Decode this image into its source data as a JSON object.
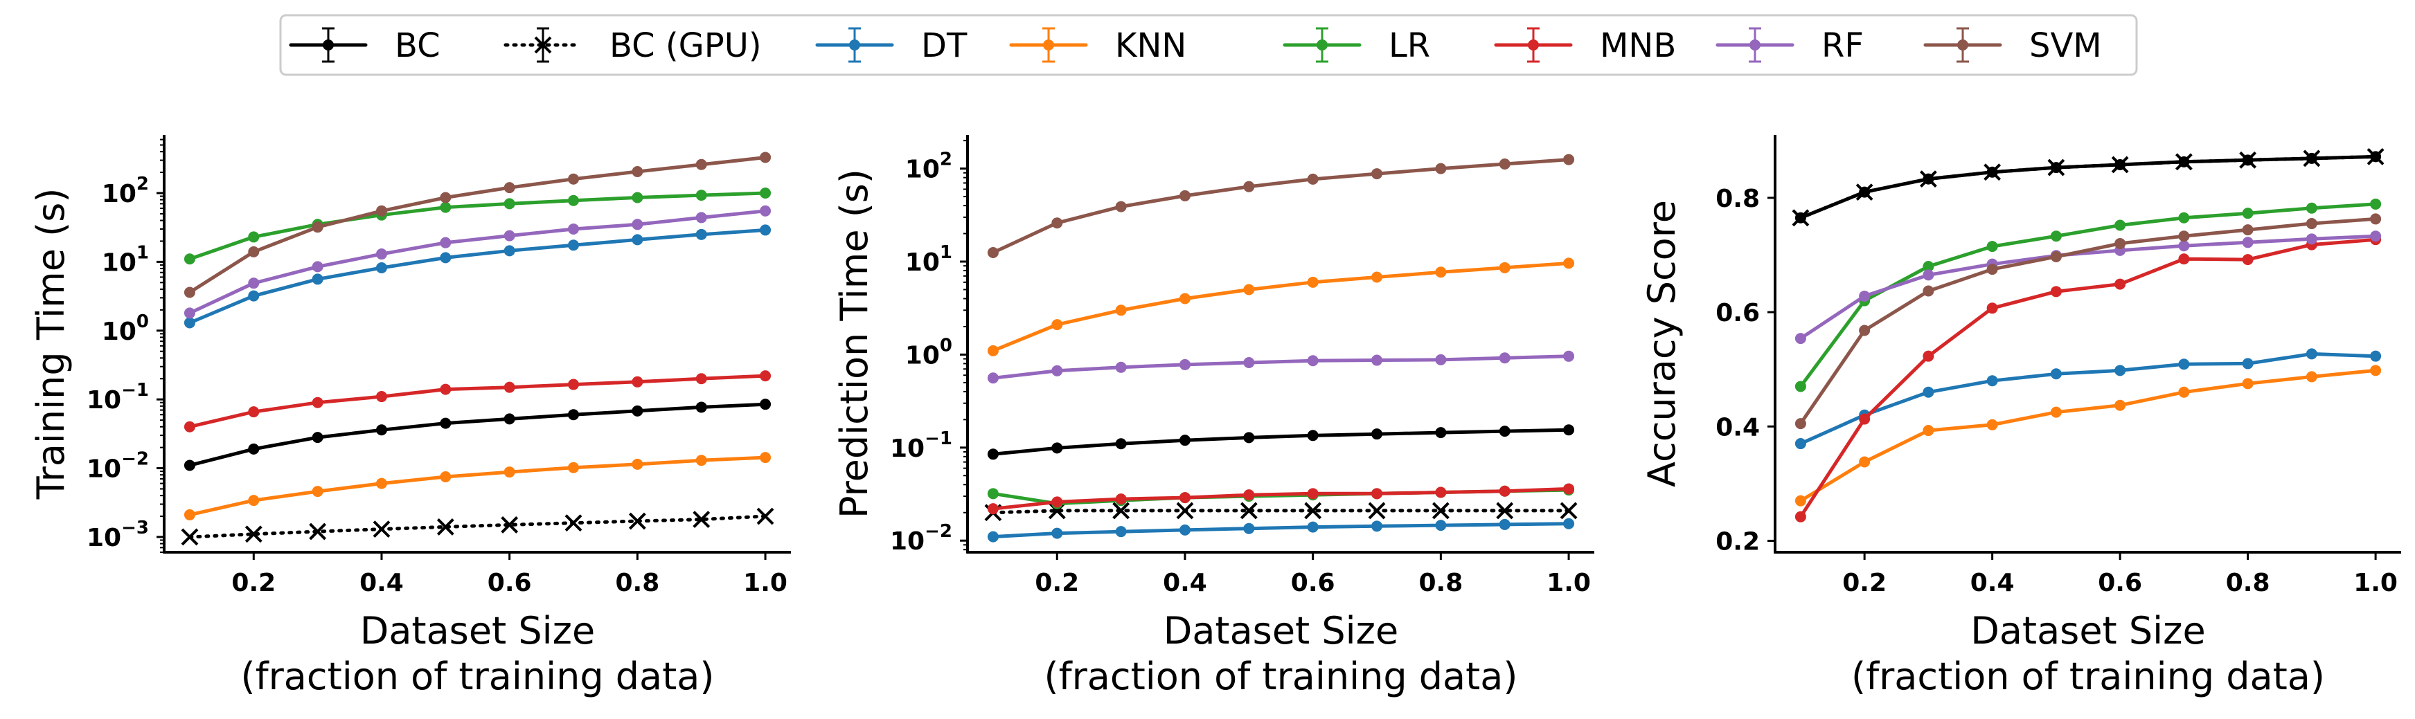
{
  "legend": {
    "placement": "top-center",
    "entries": [
      {
        "label": "BC",
        "color": "#000000",
        "style": "solid",
        "marker": "dot"
      },
      {
        "label": "BC (GPU)",
        "color": "#000000",
        "style": "dotted",
        "marker": "x"
      },
      {
        "label": "DT",
        "color": "#1f77b4",
        "style": "solid",
        "marker": "dot"
      },
      {
        "label": "KNN",
        "color": "#ff7f0e",
        "style": "solid",
        "marker": "dot"
      },
      {
        "label": "LR",
        "color": "#2ca02c",
        "style": "solid",
        "marker": "dot"
      },
      {
        "label": "MNB",
        "color": "#d62728",
        "style": "solid",
        "marker": "dot"
      },
      {
        "label": "RF",
        "color": "#9467bd",
        "style": "solid",
        "marker": "dot"
      },
      {
        "label": "SVM",
        "color": "#8c564b",
        "style": "solid",
        "marker": "dot"
      }
    ]
  },
  "chart_data": [
    {
      "type": "line",
      "ylabel": "Training Time (s)",
      "xlabel": "Dataset Size",
      "xlabel2": "(fraction of training data)",
      "yscale": "log",
      "xlim": [
        0.06,
        1.04
      ],
      "ylim": [
        0.0006,
        700
      ],
      "xticks": [
        0.2,
        0.4,
        0.6,
        0.8,
        1.0
      ],
      "xtick_labels": [
        "0.2",
        "0.4",
        "0.6",
        "0.8",
        "1.0"
      ],
      "yticks": [
        0.001,
        0.01,
        0.1,
        1,
        10,
        100
      ],
      "ytick_labels": [
        {
          "base": "10",
          "exp": "−3"
        },
        {
          "base": "10",
          "exp": "−2"
        },
        {
          "base": "10",
          "exp": "−1"
        },
        {
          "base": "10",
          "exp": "0"
        },
        {
          "base": "10",
          "exp": "1"
        },
        {
          "base": "10",
          "exp": "2"
        }
      ],
      "x": [
        0.1,
        0.2,
        0.3,
        0.4,
        0.5,
        0.6,
        0.7,
        0.8,
        0.9,
        1.0
      ],
      "series": [
        {
          "name": "BC",
          "color": "#000000",
          "style": "solid",
          "marker": "dot",
          "values": [
            0.011,
            0.019,
            0.028,
            0.036,
            0.045,
            0.052,
            0.06,
            0.068,
            0.077,
            0.085
          ]
        },
        {
          "name": "BC (GPU)",
          "color": "#000000",
          "style": "dotted",
          "marker": "x",
          "values": [
            0.001,
            0.0011,
            0.0012,
            0.0013,
            0.0014,
            0.0015,
            0.0016,
            0.0017,
            0.0018,
            0.002
          ]
        },
        {
          "name": "DT",
          "color": "#1f77b4",
          "style": "solid",
          "marker": "dot",
          "values": [
            1.3,
            3.2,
            5.6,
            8.2,
            11.5,
            14.5,
            17.5,
            21,
            25,
            29
          ]
        },
        {
          "name": "KNN",
          "color": "#ff7f0e",
          "style": "solid",
          "marker": "dot",
          "values": [
            0.0021,
            0.0034,
            0.0046,
            0.006,
            0.0075,
            0.0088,
            0.0102,
            0.0114,
            0.013,
            0.0143
          ]
        },
        {
          "name": "LR",
          "color": "#2ca02c",
          "style": "solid",
          "marker": "dot",
          "values": [
            11,
            23,
            35,
            48,
            62,
            70,
            78,
            86,
            93,
            100
          ]
        },
        {
          "name": "MNB",
          "color": "#d62728",
          "style": "solid",
          "marker": "dot",
          "values": [
            0.04,
            0.066,
            0.09,
            0.11,
            0.14,
            0.15,
            0.165,
            0.18,
            0.2,
            0.22
          ]
        },
        {
          "name": "RF",
          "color": "#9467bd",
          "style": "solid",
          "marker": "dot",
          "values": [
            1.8,
            4.9,
            8.5,
            13,
            19,
            24,
            30,
            35,
            44,
            55
          ]
        },
        {
          "name": "SVM",
          "color": "#8c564b",
          "style": "solid",
          "marker": "dot",
          "values": [
            3.6,
            14,
            32,
            55,
            86,
            120,
            160,
            205,
            260,
            330
          ]
        }
      ]
    },
    {
      "type": "line",
      "ylabel": "Prediction Time (s)",
      "xlabel": "Dataset Size",
      "xlabel2": "(fraction of training data)",
      "yscale": "log",
      "xlim": [
        0.06,
        1.04
      ],
      "ylim": [
        0.0075,
        230
      ],
      "xticks": [
        0.2,
        0.4,
        0.6,
        0.8,
        1.0
      ],
      "xtick_labels": [
        "0.2",
        "0.4",
        "0.6",
        "0.8",
        "1.0"
      ],
      "yticks": [
        0.01,
        0.1,
        1,
        10,
        100
      ],
      "ytick_labels": [
        {
          "base": "10",
          "exp": "−2"
        },
        {
          "base": "10",
          "exp": "−1"
        },
        {
          "base": "10",
          "exp": "0"
        },
        {
          "base": "10",
          "exp": "1"
        },
        {
          "base": "10",
          "exp": "2"
        }
      ],
      "x": [
        0.1,
        0.2,
        0.3,
        0.4,
        0.5,
        0.6,
        0.7,
        0.8,
        0.9,
        1.0
      ],
      "series": [
        {
          "name": "BC",
          "color": "#000000",
          "style": "solid",
          "marker": "dot",
          "values": [
            0.085,
            0.099,
            0.11,
            0.12,
            0.128,
            0.135,
            0.14,
            0.145,
            0.15,
            0.155
          ]
        },
        {
          "name": "BC (GPU)",
          "color": "#000000",
          "style": "dotted",
          "marker": "x",
          "values": [
            0.02,
            0.021,
            0.021,
            0.021,
            0.021,
            0.021,
            0.021,
            0.021,
            0.021,
            0.021
          ]
        },
        {
          "name": "DT",
          "color": "#1f77b4",
          "style": "solid",
          "marker": "dot",
          "values": [
            0.011,
            0.012,
            0.0125,
            0.013,
            0.0135,
            0.014,
            0.0143,
            0.0146,
            0.0149,
            0.0152
          ]
        },
        {
          "name": "KNN",
          "color": "#ff7f0e",
          "style": "solid",
          "marker": "dot",
          "values": [
            1.1,
            2.1,
            3.0,
            4.0,
            5.0,
            6.0,
            6.8,
            7.7,
            8.6,
            9.6
          ]
        },
        {
          "name": "LR",
          "color": "#2ca02c",
          "style": "solid",
          "marker": "dot",
          "values": [
            0.032,
            0.025,
            0.027,
            0.029,
            0.03,
            0.031,
            0.032,
            0.033,
            0.034,
            0.035
          ]
        },
        {
          "name": "MNB",
          "color": "#d62728",
          "style": "solid",
          "marker": "dot",
          "values": [
            0.022,
            0.026,
            0.028,
            0.029,
            0.031,
            0.032,
            0.032,
            0.033,
            0.034,
            0.036
          ]
        },
        {
          "name": "RF",
          "color": "#9467bd",
          "style": "solid",
          "marker": "dot",
          "values": [
            0.56,
            0.67,
            0.73,
            0.78,
            0.82,
            0.86,
            0.87,
            0.88,
            0.92,
            0.96
          ]
        },
        {
          "name": "SVM",
          "color": "#8c564b",
          "style": "solid",
          "marker": "dot",
          "values": [
            12.5,
            26,
            39,
            51,
            64,
            77,
            88,
            100,
            112,
            125
          ]
        }
      ]
    },
    {
      "type": "line",
      "ylabel": "Accuracy Score",
      "xlabel": "Dataset Size",
      "xlabel2": "(fraction of training data)",
      "yscale": "linear",
      "xlim": [
        0.06,
        1.04
      ],
      "ylim": [
        0.18,
        0.91
      ],
      "xticks": [
        0.2,
        0.4,
        0.6,
        0.8,
        1.0
      ],
      "xtick_labels": [
        "0.2",
        "0.4",
        "0.6",
        "0.8",
        "1.0"
      ],
      "yticks": [
        0.2,
        0.4,
        0.6,
        0.8
      ],
      "ytick_labels": [
        {
          "base": "0.2",
          "exp": ""
        },
        {
          "base": "0.4",
          "exp": ""
        },
        {
          "base": "0.6",
          "exp": ""
        },
        {
          "base": "0.8",
          "exp": ""
        }
      ],
      "x": [
        0.1,
        0.2,
        0.3,
        0.4,
        0.5,
        0.6,
        0.7,
        0.8,
        0.9,
        1.0
      ],
      "series": [
        {
          "name": "BC",
          "color": "#000000",
          "style": "solid",
          "marker": "dot",
          "values": [
            0.765,
            0.81,
            0.833,
            0.845,
            0.853,
            0.858,
            0.863,
            0.866,
            0.869,
            0.872
          ]
        },
        {
          "name": "BC (GPU)",
          "color": "#000000",
          "style": "dotted",
          "marker": "x",
          "values": [
            0.765,
            0.81,
            0.833,
            0.845,
            0.853,
            0.858,
            0.863,
            0.866,
            0.869,
            0.872
          ]
        },
        {
          "name": "DT",
          "color": "#1f77b4",
          "style": "solid",
          "marker": "dot",
          "values": [
            0.37,
            0.42,
            0.46,
            0.48,
            0.492,
            0.498,
            0.509,
            0.51,
            0.527,
            0.523
          ]
        },
        {
          "name": "KNN",
          "color": "#ff7f0e",
          "style": "solid",
          "marker": "dot",
          "values": [
            0.27,
            0.338,
            0.393,
            0.403,
            0.425,
            0.437,
            0.46,
            0.475,
            0.487,
            0.498
          ]
        },
        {
          "name": "LR",
          "color": "#2ca02c",
          "style": "solid",
          "marker": "dot",
          "values": [
            0.47,
            0.62,
            0.68,
            0.715,
            0.733,
            0.752,
            0.765,
            0.773,
            0.782,
            0.789
          ]
        },
        {
          "name": "MNB",
          "color": "#d62728",
          "style": "solid",
          "marker": "dot",
          "values": [
            0.242,
            0.413,
            0.523,
            0.607,
            0.636,
            0.649,
            0.693,
            0.692,
            0.718,
            0.727
          ]
        },
        {
          "name": "RF",
          "color": "#9467bd",
          "style": "solid",
          "marker": "dot",
          "values": [
            0.554,
            0.628,
            0.665,
            0.684,
            0.699,
            0.708,
            0.716,
            0.722,
            0.728,
            0.733
          ]
        },
        {
          "name": "SVM",
          "color": "#8c564b",
          "style": "solid",
          "marker": "dot",
          "values": [
            0.405,
            0.568,
            0.637,
            0.675,
            0.697,
            0.72,
            0.733,
            0.744,
            0.755,
            0.763
          ]
        }
      ]
    }
  ]
}
